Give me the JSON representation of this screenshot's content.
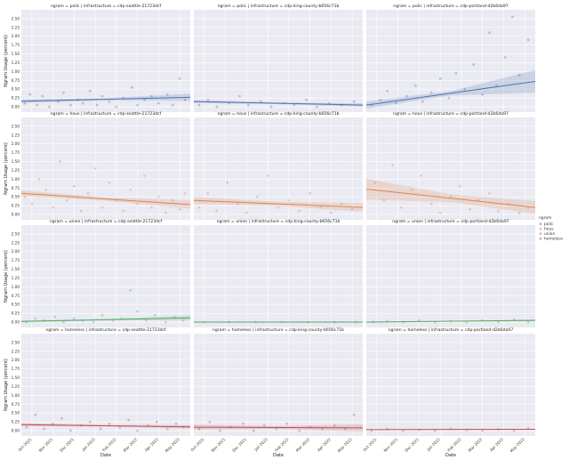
{
  "chart_data": {
    "type": "scatter",
    "title": "",
    "xlabel": "Date",
    "ylabel": "Ngram Usage (percent)",
    "ylim": [
      -0.15,
      2.75
    ],
    "yticks": [
      "0.00",
      "0.25",
      "0.50",
      "0.75",
      "1.00",
      "1.25",
      "1.50",
      "1.75",
      "2.00",
      "2.25",
      "2.50"
    ],
    "xticks": [
      "Oct 2021",
      "Nov 2021",
      "Dec 2021",
      "Jan 2022",
      "Feb 2022",
      "Mar 2022",
      "Apr 2022",
      "May 2022"
    ],
    "grid": true,
    "legend": {
      "title": "ngram",
      "placement": "right",
      "entries": [
        {
          "label": "polic",
          "color": "#4c72b0"
        },
        {
          "label": "hous",
          "color": "#dd8452"
        },
        {
          "label": "union",
          "color": "#55a868"
        },
        {
          "label": "homeless",
          "color": "#c44e52"
        }
      ]
    },
    "panels": [
      {
        "title": "ngram = polic | infrastructure = cdp-seattle-21723dcf",
        "ngram": "polic",
        "trend": [
          0.16,
          0.27
        ],
        "band": [
          0.05,
          0.1
        ],
        "points": [
          [
            0.2,
            0.1
          ],
          [
            0.5,
            0.35
          ],
          [
            0.9,
            0.05
          ],
          [
            1.2,
            0.3
          ],
          [
            1.6,
            0.0
          ],
          [
            2.1,
            0.15
          ],
          [
            2.4,
            0.4
          ],
          [
            2.8,
            0.05
          ],
          [
            3.2,
            0.2
          ],
          [
            3.5,
            0.1
          ],
          [
            3.9,
            0.45
          ],
          [
            4.3,
            0.05
          ],
          [
            4.6,
            0.3
          ],
          [
            5.0,
            0.15
          ],
          [
            5.4,
            0.0
          ],
          [
            5.8,
            0.25
          ],
          [
            6.3,
            0.55
          ],
          [
            6.6,
            0.05
          ],
          [
            7.0,
            0.2
          ],
          [
            7.4,
            0.3
          ],
          [
            7.8,
            0.1
          ],
          [
            8.3,
            0.35
          ],
          [
            8.6,
            0.05
          ],
          [
            9.0,
            0.8
          ],
          [
            9.3,
            0.2
          ]
        ]
      },
      {
        "title": "ngram = polic | infrastructure = cdp-king-county-b656c71b",
        "ngram": "polic",
        "trend": [
          0.15,
          0.05
        ],
        "band": [
          0.04,
          0.05
        ],
        "points": [
          [
            0.3,
            0.05
          ],
          [
            0.8,
            0.2
          ],
          [
            1.3,
            0.0
          ],
          [
            2.0,
            0.1
          ],
          [
            2.6,
            0.3
          ],
          [
            3.1,
            0.05
          ],
          [
            3.8,
            0.15
          ],
          [
            4.4,
            0.0
          ],
          [
            5.1,
            0.1
          ],
          [
            5.7,
            0.05
          ],
          [
            6.4,
            0.2
          ],
          [
            7.0,
            0.0
          ],
          [
            7.7,
            0.1
          ],
          [
            8.4,
            0.05
          ],
          [
            9.1,
            0.15
          ]
        ]
      },
      {
        "title": "ngram = polic | infrastructure = cdp-portland-d2b6da97",
        "ngram": "polic",
        "trend": [
          0.05,
          0.72
        ],
        "band": [
          0.1,
          0.32
        ],
        "points": [
          [
            0.3,
            0.05
          ],
          [
            0.8,
            0.2
          ],
          [
            1.2,
            0.45
          ],
          [
            1.7,
            0.1
          ],
          [
            2.3,
            0.3
          ],
          [
            2.8,
            0.6
          ],
          [
            3.2,
            0.15
          ],
          [
            3.7,
            0.4
          ],
          [
            4.2,
            0.8
          ],
          [
            4.7,
            0.25
          ],
          [
            5.1,
            0.95
          ],
          [
            5.6,
            0.5
          ],
          [
            6.1,
            1.2
          ],
          [
            6.6,
            0.35
          ],
          [
            7.0,
            2.1
          ],
          [
            7.4,
            0.6
          ],
          [
            7.9,
            1.4
          ],
          [
            8.3,
            2.55
          ],
          [
            8.7,
            0.9
          ],
          [
            9.2,
            1.9
          ]
        ]
      },
      {
        "title": "ngram = hous | infrastructure = cdp-seattle-21723dcf",
        "ngram": "hous",
        "trend": [
          0.6,
          0.28
        ],
        "band": [
          0.08,
          0.12
        ],
        "points": [
          [
            0.2,
            0.5
          ],
          [
            0.6,
            0.3
          ],
          [
            1.0,
            1.0
          ],
          [
            1.4,
            0.7
          ],
          [
            1.8,
            0.2
          ],
          [
            2.2,
            1.5
          ],
          [
            2.6,
            0.4
          ],
          [
            3.0,
            0.8
          ],
          [
            3.4,
            0.1
          ],
          [
            3.8,
            0.6
          ],
          [
            4.2,
            1.3
          ],
          [
            4.6,
            0.2
          ],
          [
            5.0,
            0.9
          ],
          [
            5.4,
            0.4
          ],
          [
            5.8,
            0.1
          ],
          [
            6.2,
            0.7
          ],
          [
            6.6,
            0.3
          ],
          [
            7.0,
            1.1
          ],
          [
            7.4,
            0.2
          ],
          [
            7.8,
            0.5
          ],
          [
            8.2,
            0.05
          ],
          [
            8.6,
            0.4
          ],
          [
            9.0,
            0.15
          ],
          [
            9.3,
            0.6
          ]
        ]
      },
      {
        "title": "ngram = hous | infrastructure = cdp-king-county-b656c71b",
        "ngram": "hous",
        "trend": [
          0.4,
          0.2
        ],
        "band": [
          0.1,
          0.12
        ],
        "points": [
          [
            0.3,
            0.2
          ],
          [
            0.8,
            0.6
          ],
          [
            1.3,
            0.1
          ],
          [
            1.9,
            0.9
          ],
          [
            2.5,
            0.3
          ],
          [
            3.0,
            0.05
          ],
          [
            3.6,
            0.5
          ],
          [
            4.2,
            1.1
          ],
          [
            4.8,
            0.2
          ],
          [
            5.4,
            0.4
          ],
          [
            6.0,
            0.1
          ],
          [
            6.6,
            0.6
          ],
          [
            7.2,
            0.2
          ],
          [
            7.8,
            0.05
          ],
          [
            8.4,
            0.3
          ],
          [
            9.0,
            0.15
          ]
        ]
      },
      {
        "title": "ngram = hous | infrastructure = cdp-portland-d2b6da97",
        "ngram": "hous",
        "trend": [
          0.72,
          0.2
        ],
        "band": [
          0.3,
          0.18
        ],
        "points": [
          [
            0.5,
            0.9
          ],
          [
            1.0,
            0.4
          ],
          [
            1.5,
            1.4
          ],
          [
            2.0,
            0.2
          ],
          [
            2.6,
            0.7
          ],
          [
            3.1,
            1.1
          ],
          [
            3.7,
            0.3
          ],
          [
            4.2,
            0.05
          ],
          [
            4.8,
            0.5
          ],
          [
            5.3,
            0.8
          ],
          [
            5.9,
            0.15
          ],
          [
            6.4,
            0.4
          ],
          [
            7.0,
            0.6
          ],
          [
            7.5,
            0.1
          ],
          [
            8.1,
            0.3
          ],
          [
            8.7,
            0.05
          ],
          [
            9.2,
            0.2
          ]
        ]
      },
      {
        "title": "ngram = union | infrastructure = cdp-seattle-21723dcf",
        "ngram": "union",
        "trend": [
          0.02,
          0.12
        ],
        "band": [
          0.03,
          0.07
        ],
        "points": [
          [
            0.3,
            0.0
          ],
          [
            0.8,
            0.1
          ],
          [
            1.3,
            0.05
          ],
          [
            1.9,
            0.15
          ],
          [
            2.4,
            0.0
          ],
          [
            3.0,
            0.1
          ],
          [
            3.5,
            0.05
          ],
          [
            4.1,
            0.0
          ],
          [
            4.6,
            0.2
          ],
          [
            5.2,
            0.05
          ],
          [
            5.7,
            0.1
          ],
          [
            6.2,
            0.9
          ],
          [
            6.6,
            0.3
          ],
          [
            7.1,
            0.05
          ],
          [
            7.6,
            0.2
          ],
          [
            8.2,
            0.0
          ],
          [
            8.7,
            0.15
          ],
          [
            9.2,
            0.05
          ]
        ]
      },
      {
        "title": "ngram = union | infrastructure = cdp-king-county-b656c71b",
        "ngram": "union",
        "trend": [
          0.0,
          0.0
        ],
        "band": [
          0.01,
          0.01
        ],
        "points": [
          [
            0.6,
            0.0
          ],
          [
            2.0,
            0.0
          ],
          [
            3.5,
            0.0
          ],
          [
            5.0,
            0.0
          ],
          [
            6.5,
            0.0
          ],
          [
            8.0,
            0.0
          ],
          [
            9.2,
            0.0
          ]
        ]
      },
      {
        "title": "ngram = union | infrastructure = cdp-portland-d2b6da97",
        "ngram": "union",
        "trend": [
          0.0,
          0.05
        ],
        "band": [
          0.01,
          0.03
        ],
        "points": [
          [
            0.4,
            0.0
          ],
          [
            1.2,
            0.02
          ],
          [
            2.1,
            0.0
          ],
          [
            3.0,
            0.05
          ],
          [
            3.9,
            0.0
          ],
          [
            4.8,
            0.03
          ],
          [
            5.7,
            0.0
          ],
          [
            6.6,
            0.05
          ],
          [
            7.5,
            0.0
          ],
          [
            8.4,
            0.07
          ],
          [
            9.2,
            0.0
          ]
        ]
      },
      {
        "title": "ngram = homeless | infrastructure = cdp-seattle-21723dcf",
        "ngram": "homeless",
        "trend": [
          0.17,
          0.11
        ],
        "band": [
          0.04,
          0.05
        ],
        "points": [
          [
            0.3,
            0.1
          ],
          [
            0.8,
            0.45
          ],
          [
            1.3,
            0.05
          ],
          [
            1.8,
            0.2
          ],
          [
            2.3,
            0.35
          ],
          [
            2.8,
            0.0
          ],
          [
            3.4,
            0.15
          ],
          [
            3.9,
            0.25
          ],
          [
            4.5,
            0.05
          ],
          [
            5.0,
            0.2
          ],
          [
            5.6,
            0.1
          ],
          [
            6.1,
            0.3
          ],
          [
            6.6,
            0.0
          ],
          [
            7.2,
            0.15
          ],
          [
            7.7,
            0.25
          ],
          [
            8.3,
            0.05
          ],
          [
            8.8,
            0.2
          ],
          [
            9.2,
            0.1
          ]
        ]
      },
      {
        "title": "ngram = homeless | infrastructure = cdp-king-county-b656c71b",
        "ngram": "homeless",
        "trend": [
          0.1,
          0.08
        ],
        "band": [
          0.07,
          0.1
        ],
        "points": [
          [
            0.3,
            0.05
          ],
          [
            0.9,
            0.25
          ],
          [
            1.5,
            0.0
          ],
          [
            2.1,
            0.1
          ],
          [
            2.8,
            0.2
          ],
          [
            3.4,
            0.0
          ],
          [
            4.0,
            0.15
          ],
          [
            4.7,
            0.05
          ],
          [
            5.3,
            0.2
          ],
          [
            6.0,
            0.0
          ],
          [
            6.6,
            0.1
          ],
          [
            7.3,
            0.05
          ],
          [
            8.0,
            0.15
          ],
          [
            8.6,
            0.05
          ],
          [
            9.1,
            0.45
          ]
        ]
      },
      {
        "title": "ngram = homeless | infrastructure = cdp-portland-d2b6da97",
        "ngram": "homeless",
        "trend": [
          0.03,
          0.04
        ],
        "band": [
          0.01,
          0.01
        ],
        "points": [
          [
            0.3,
            0.0
          ],
          [
            1.2,
            0.05
          ],
          [
            2.1,
            0.0
          ],
          [
            3.0,
            0.03
          ],
          [
            3.9,
            0.0
          ],
          [
            4.8,
            0.05
          ],
          [
            5.7,
            0.02
          ],
          [
            6.6,
            0.0
          ],
          [
            7.5,
            0.04
          ],
          [
            8.4,
            0.0
          ],
          [
            9.2,
            0.06
          ]
        ]
      }
    ]
  }
}
